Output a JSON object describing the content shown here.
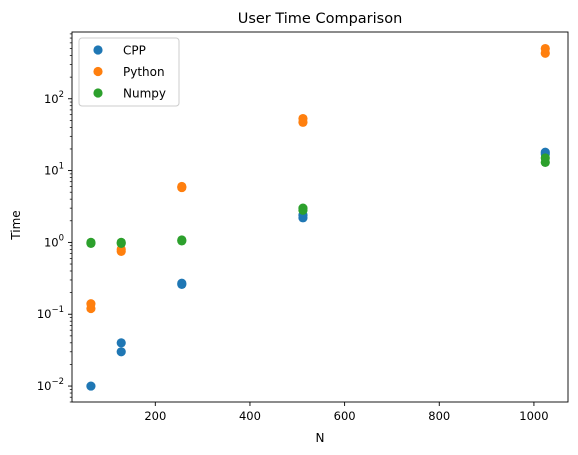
{
  "chart_data": {
    "type": "scatter",
    "title": "User Time Comparison",
    "xlabel": "N",
    "ylabel": "Time",
    "xlim": [
      24,
      1072
    ],
    "ylim": [
      0.006,
      850
    ],
    "yscale": "log",
    "xticks": [
      200,
      400,
      600,
      800,
      1000
    ],
    "yticks": [
      {
        "value": 0.01,
        "base": "10",
        "exp": "−2"
      },
      {
        "value": 0.1,
        "base": "10",
        "exp": "−1"
      },
      {
        "value": 1,
        "base": "10",
        "exp": "0"
      },
      {
        "value": 10,
        "base": "10",
        "exp": "1"
      },
      {
        "value": 100,
        "base": "10",
        "exp": "2"
      }
    ],
    "grid": false,
    "legend_position": "top-left",
    "series": [
      {
        "name": "CPP",
        "color": "#1f77b4",
        "points": [
          {
            "x": 64,
            "y": 0.01
          },
          {
            "x": 128,
            "y": 0.03
          },
          {
            "x": 128,
            "y": 0.04
          },
          {
            "x": 256,
            "y": 0.26
          },
          {
            "x": 256,
            "y": 0.27
          },
          {
            "x": 512,
            "y": 2.2
          },
          {
            "x": 512,
            "y": 2.4
          },
          {
            "x": 1024,
            "y": 17
          },
          {
            "x": 1024,
            "y": 18
          }
        ]
      },
      {
        "name": "Python",
        "color": "#ff7f0e",
        "points": [
          {
            "x": 64,
            "y": 0.12
          },
          {
            "x": 64,
            "y": 0.14
          },
          {
            "x": 128,
            "y": 0.75
          },
          {
            "x": 128,
            "y": 0.8
          },
          {
            "x": 256,
            "y": 5.8
          },
          {
            "x": 256,
            "y": 6.0
          },
          {
            "x": 512,
            "y": 47
          },
          {
            "x": 512,
            "y": 53
          },
          {
            "x": 1024,
            "y": 430
          },
          {
            "x": 1024,
            "y": 500
          }
        ]
      },
      {
        "name": "Numpy",
        "color": "#2ca02c",
        "points": [
          {
            "x": 64,
            "y": 0.97
          },
          {
            "x": 64,
            "y": 1.0
          },
          {
            "x": 128,
            "y": 0.97
          },
          {
            "x": 128,
            "y": 1.0
          },
          {
            "x": 256,
            "y": 1.05
          },
          {
            "x": 256,
            "y": 1.08
          },
          {
            "x": 512,
            "y": 2.8
          },
          {
            "x": 512,
            "y": 3.0
          },
          {
            "x": 1024,
            "y": 13
          },
          {
            "x": 1024,
            "y": 15
          }
        ]
      }
    ]
  }
}
